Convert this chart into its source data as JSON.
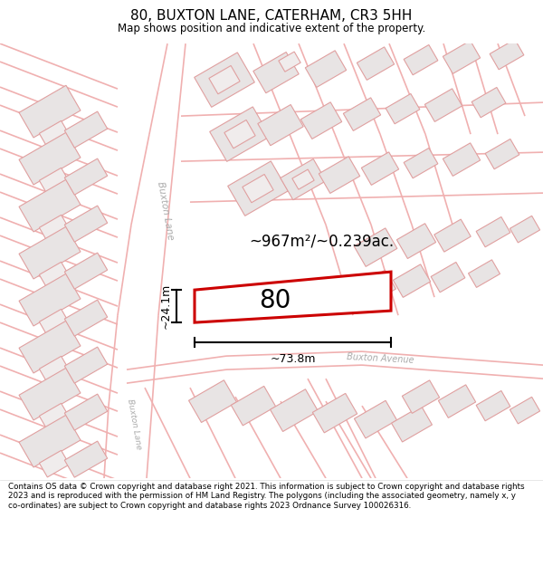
{
  "title": "80, BUXTON LANE, CATERHAM, CR3 5HH",
  "subtitle": "Map shows position and indicative extent of the property.",
  "footer": "Contains OS data © Crown copyright and database right 2021. This information is subject to Crown copyright and database rights 2023 and is reproduced with the permission of HM Land Registry. The polygons (including the associated geometry, namely x, y co-ordinates) are subject to Crown copyright and database rights 2023 Ordnance Survey 100026316.",
  "map_bg": "#ffffff",
  "road_color": "#f0b0b0",
  "road_lw": 1.2,
  "building_fill": "#e8e4e4",
  "building_edge": "#e0a0a0",
  "building_lw": 0.8,
  "highlight_fill": "#ffffff",
  "highlight_edge": "#cc0000",
  "highlight_lw": 2.2,
  "area_text": "~967m²/~0.239ac.",
  "label_80": "80",
  "dim_width": "~73.8m",
  "dim_height": "~24.1m",
  "road_label_buxton_lane": "Buxton Lane",
  "road_label_buxton_avenue": "Buxton Avenue",
  "road_label_buxton_lane2": "Buxton Lane"
}
